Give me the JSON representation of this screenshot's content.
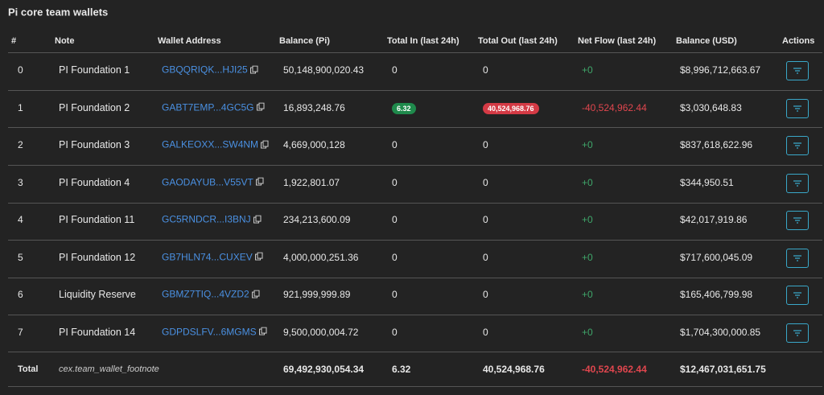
{
  "title": "Pi core team wallets",
  "table": {
    "header": [
      "#",
      "Note",
      "Wallet Address",
      "Balance (Pi)",
      "Total In (last 24h)",
      "Total Out (last 24h)",
      "Net Flow (last 24h)",
      "Balance (USD)",
      "Actions"
    ],
    "rows": [
      [
        "0",
        "PI Foundation 1",
        "GBQQRIQK...HJI25",
        "50,148,900,020.43",
        "0",
        "0",
        "+0",
        "$8,996,712,663.67"
      ],
      [
        "1",
        "PI Foundation 2",
        "GABT7EMP...4GC5G",
        "16,893,248.76",
        "6.32",
        "40,524,968.76",
        "-40,524,962.44",
        "$3,030,648.83"
      ],
      [
        "2",
        "PI Foundation 3",
        "GALKEOXX...SW4NM",
        "4,669,000,128",
        "0",
        "0",
        "+0",
        "$837,618,622.96"
      ],
      [
        "3",
        "PI Foundation 4",
        "GAODAYUB...V55VT",
        "1,922,801.07",
        "0",
        "0",
        "+0",
        "$344,950.51"
      ],
      [
        "4",
        "PI Foundation 11",
        "GC5RNDCR...I3BNJ",
        "234,213,600.09",
        "0",
        "0",
        "+0",
        "$42,017,919.86"
      ],
      [
        "5",
        "PI Foundation 12",
        "GB7HLN74...CUXEV",
        "4,000,000,251.36",
        "0",
        "0",
        "+0",
        "$717,600,045.09"
      ],
      [
        "6",
        "Liquidity Reserve",
        "GBMZ7TIQ...4VZD2",
        "921,999,999.89",
        "0",
        "0",
        "+0",
        "$165,406,799.98"
      ],
      [
        "7",
        "PI Foundation 14",
        "GDPDSLFV...6MGMS",
        "9,500,000,004.72",
        "0",
        "0",
        "+0",
        "$1,704,300,000.85"
      ]
    ],
    "total": [
      "Total",
      "cex.team_wallet_footnote",
      "69,492,930,054.34",
      "6.32",
      "40,524,968.76",
      "-40,524,962.44",
      "$12,467,031,651.75"
    ]
  }
}
